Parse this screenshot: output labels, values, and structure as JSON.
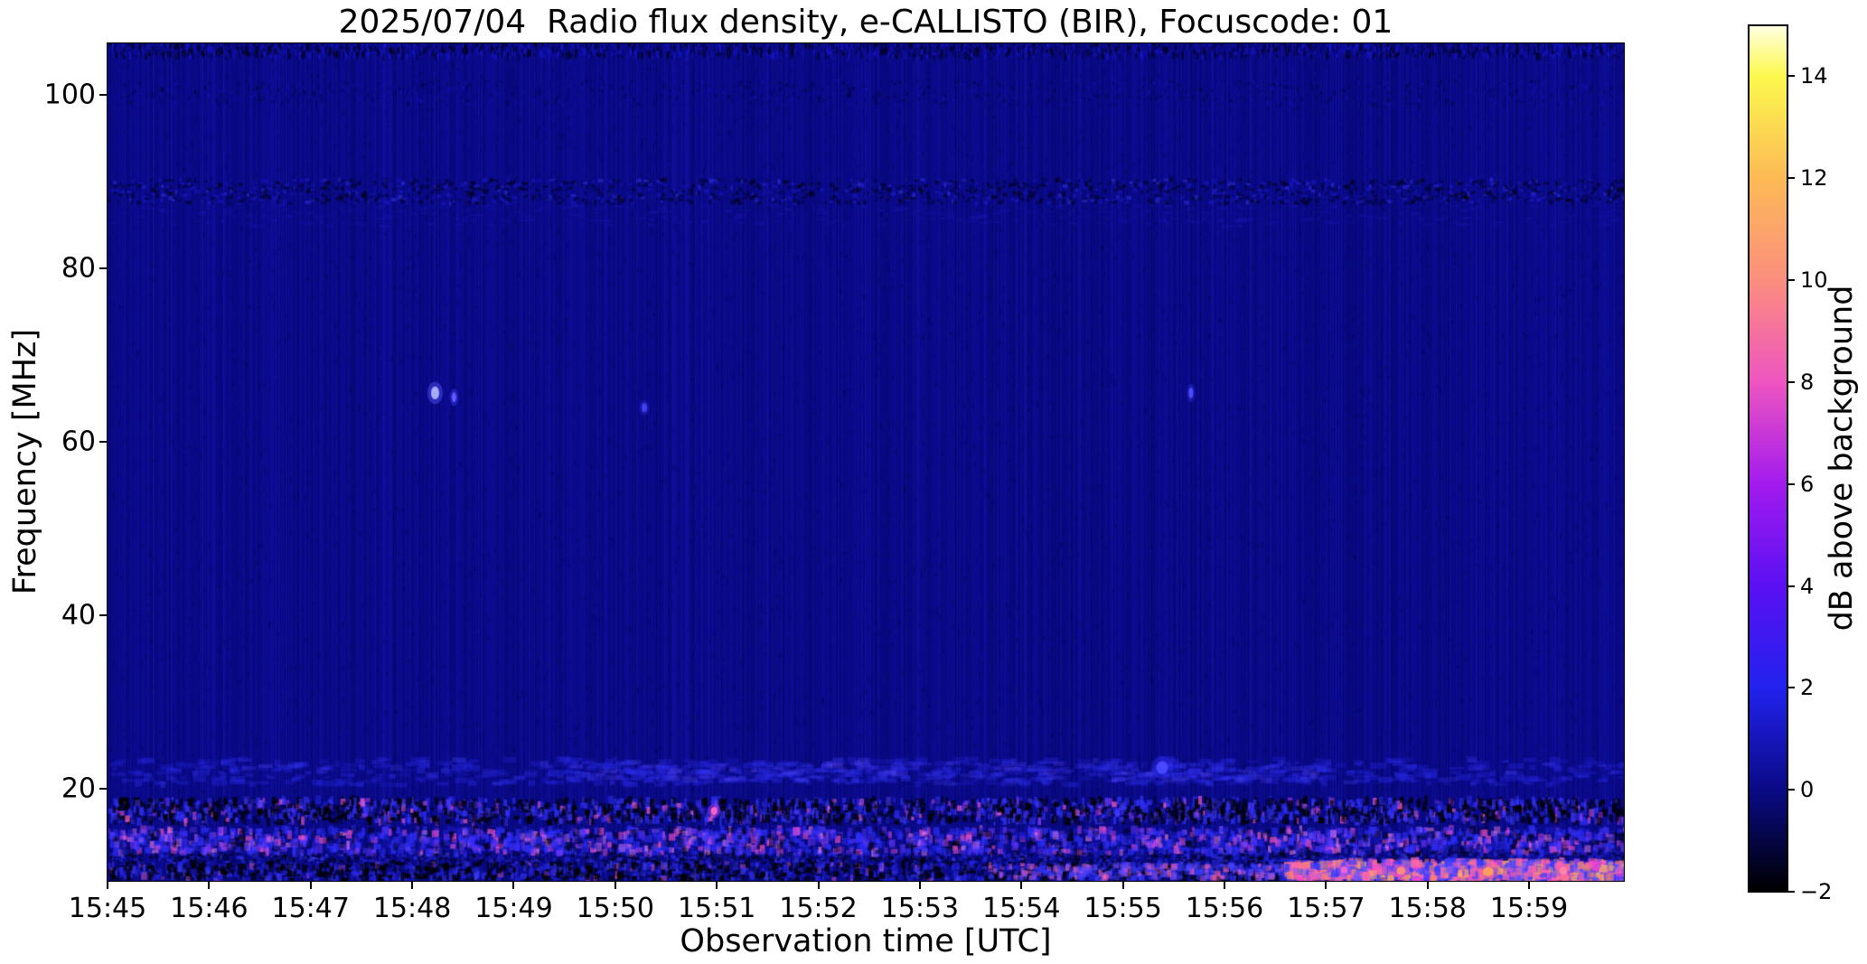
{
  "figure": {
    "background_color": "#ffffff"
  },
  "chart_data": {
    "type": "heatmap",
    "subtype": "radio-spectrogram",
    "title": "2025/07/04  Radio flux density, e-CALLISTO (BIR), Focuscode: 01",
    "xlabel": "Observation time [UTC]",
    "ylabel": "Frequency [MHz]",
    "x_ticks": [
      "15:45",
      "15:46",
      "15:47",
      "15:48",
      "15:49",
      "15:50",
      "15:51",
      "15:52",
      "15:53",
      "15:54",
      "15:55",
      "15:56",
      "15:57",
      "15:58",
      "15:59"
    ],
    "x_range": [
      "15:45",
      "16:00"
    ],
    "y_ticks": [
      100,
      80,
      60,
      40,
      20
    ],
    "y_range_mhz": [
      9.4,
      105.9
    ],
    "grid": false,
    "legend": false,
    "background_level_color": "#0a0a8c",
    "colorbar": {
      "label": "dB above background",
      "ticks": [
        14,
        12,
        10,
        8,
        6,
        4,
        2,
        0,
        -2
      ],
      "tick_labels": [
        "14",
        "12",
        "10",
        "8",
        "6",
        "4",
        "2",
        "0",
        "−2"
      ],
      "range": [
        -2,
        15
      ],
      "colormap_stops": [
        {
          "value": -2,
          "color": "#000000"
        },
        {
          "value": 0,
          "color": "#0a0a87"
        },
        {
          "value": 2,
          "color": "#2222ee"
        },
        {
          "value": 4,
          "color": "#5a10f2"
        },
        {
          "value": 6,
          "color": "#a21bee"
        },
        {
          "value": 8,
          "color": "#ee55c0"
        },
        {
          "value": 10,
          "color": "#fb8e7e"
        },
        {
          "value": 12,
          "color": "#fdba55"
        },
        {
          "value": 14,
          "color": "#fcf84d"
        },
        {
          "value": 15,
          "color": "#ffffe2"
        }
      ]
    },
    "noise": {
      "column_stripe_density": 1.0,
      "speckle_count": 15000,
      "speckle_dark": "#000020",
      "speckle_light": "#1414b8"
    },
    "bands": [
      {
        "name": "top-edge-noise",
        "f": [
          104.3,
          106.3
        ],
        "x": [
          0,
          1
        ],
        "density": 2200,
        "dash": [
          1,
          3,
          3,
          9
        ],
        "palette": [
          [
            "#000000",
            0.55,
            0.55
          ],
          [
            "#1a1ae8",
            0.5,
            0.45
          ]
        ]
      },
      {
        "name": "band-100mhz",
        "f": [
          98.8,
          101.6
        ],
        "x": [
          0,
          1
        ],
        "density": 800,
        "dash": [
          1,
          4,
          2,
          5
        ],
        "palette": [
          [
            "#000000",
            0.3,
            0.65
          ],
          [
            "#1818cf",
            0.35,
            0.35
          ]
        ]
      },
      {
        "name": "band-88mhz-fm-notch",
        "f": [
          87.4,
          90.2
        ],
        "x": [
          0,
          1
        ],
        "density": 1500,
        "dash": [
          2,
          6,
          2,
          5
        ],
        "palette": [
          [
            "#000000",
            0.5,
            0.6
          ],
          [
            "#1d1dd8",
            0.5,
            0.3
          ],
          [
            "#3c3cfa",
            0.5,
            0.1
          ]
        ]
      },
      {
        "name": "haze-86mhz",
        "f": [
          84.8,
          87.2
        ],
        "x": [
          0,
          1
        ],
        "density": 350,
        "dash": [
          4,
          12,
          2,
          4
        ],
        "palette": [
          [
            "#2525d8",
            0.18,
            1
          ]
        ]
      },
      {
        "name": "band-22mhz",
        "f": [
          20.4,
          23.4
        ],
        "x": [
          0,
          1
        ],
        "density": 700,
        "dash": [
          5,
          18,
          3,
          7
        ],
        "palette": [
          [
            "#2828e6",
            0.4,
            0.6
          ],
          [
            "#3333ff",
            0.35,
            0.3
          ],
          [
            "#5050ff",
            0.3,
            0.1
          ]
        ]
      },
      {
        "name": "band-22mhz-extra",
        "f": [
          20.8,
          23.0
        ],
        "x": [
          0.3,
          0.8
        ],
        "density": 260,
        "dash": [
          6,
          20,
          3,
          6
        ],
        "palette": [
          [
            "#3434f2",
            0.35,
            0.8
          ],
          [
            "#6a4df8",
            0.25,
            0.2
          ]
        ]
      },
      {
        "name": "band-17-18mhz",
        "f": [
          16.1,
          18.7
        ],
        "x": [
          0,
          1
        ],
        "density": 2400,
        "dash": [
          2,
          6,
          4,
          10
        ],
        "palette": [
          [
            "#000000",
            0.8,
            0.5
          ],
          [
            "#3232ff",
            0.75,
            0.3
          ],
          [
            "#5544ff",
            0.5,
            0.12
          ],
          [
            "#ff5fc9",
            0.75,
            0.04
          ],
          [
            "#cc44ff",
            0.5,
            0.04
          ]
        ]
      },
      {
        "name": "band-13-15mhz",
        "f": [
          12.5,
          15.3
        ],
        "x": [
          0,
          1
        ],
        "density": 2400,
        "dash": [
          3,
          8,
          4,
          10
        ],
        "palette": [
          [
            "#3030ff",
            0.7,
            0.32
          ],
          [
            "#2020dd",
            0.6,
            0.2
          ],
          [
            "#000000",
            0.55,
            0.18
          ],
          [
            "#7a3cff",
            0.55,
            0.14
          ],
          [
            "#ff55cc",
            0.7,
            0.1
          ],
          [
            "#ff88dd",
            0.6,
            0.06
          ]
        ]
      },
      {
        "name": "band-12mhz",
        "f": [
          11.3,
          12.5
        ],
        "x": [
          0,
          1
        ],
        "density": 1100,
        "dash": [
          2,
          6,
          2,
          5
        ],
        "palette": [
          [
            "#000000",
            0.6,
            0.5
          ],
          [
            "#2a2aee",
            0.6,
            0.4
          ],
          [
            "#5050ff",
            0.5,
            0.1
          ]
        ]
      },
      {
        "name": "band-bottom-left",
        "f": [
          9.4,
          11.3
        ],
        "x": [
          0,
          0.8
        ],
        "density": 1500,
        "dash": [
          2,
          7,
          3,
          9
        ],
        "palette": [
          [
            "#000000",
            0.85,
            0.5
          ],
          [
            "#2525e8",
            0.7,
            0.35
          ],
          [
            "#4444ff",
            0.6,
            0.1
          ],
          [
            "#ff66bb",
            0.5,
            0.05
          ]
        ]
      },
      {
        "name": "band-bottom-mid",
        "f": [
          9.6,
          11.2
        ],
        "x": [
          0.58,
          0.79
        ],
        "density": 350,
        "dash": [
          3,
          8,
          3,
          8
        ],
        "palette": [
          [
            "#3a3aff",
            0.6,
            0.6
          ],
          [
            "#ff66bb",
            0.6,
            0.25
          ],
          [
            "#7755ff",
            0.5,
            0.15
          ]
        ]
      },
      {
        "name": "band-bottom-right-bright",
        "f": [
          9.5,
          11.5
        ],
        "x": [
          0.775,
          1
        ],
        "density": 1200,
        "dash": [
          4,
          10,
          4,
          11
        ],
        "palette": [
          [
            "#3a3aff",
            0.8,
            0.3
          ],
          [
            "#6655ff",
            0.7,
            0.2
          ],
          [
            "#ff66aa",
            0.8,
            0.2
          ],
          [
            "#ff8866",
            0.8,
            0.12
          ],
          [
            "#ffaa66",
            0.8,
            0.08
          ],
          [
            "#ff44cc",
            0.8,
            0.1
          ]
        ]
      }
    ],
    "spots": [
      {
        "time": "15:48.2",
        "x": 0.216,
        "f": 65.6,
        "w": 9,
        "h": 13,
        "color": "#b0b0ff",
        "halo": "#5555ff"
      },
      {
        "time": "15:48.4",
        "x": 0.2285,
        "f": 65.1,
        "w": 5,
        "h": 10,
        "color": "#6060ff",
        "halo": "#3a3af5"
      },
      {
        "time": "15:50.3",
        "x": 0.354,
        "f": 63.9,
        "w": 6,
        "h": 9,
        "color": "#4343f6",
        "halo": "#2626c8"
      },
      {
        "time": "15:55.7",
        "x": 0.7145,
        "f": 65.6,
        "w": 5,
        "h": 11,
        "color": "#4d4dff",
        "halo": "#2a2ad0"
      },
      {
        "time": "15:55.4",
        "x": 0.6955,
        "f": 22.4,
        "w": 13,
        "h": 13,
        "color": "#4a4aff",
        "halo": "#2d2df0"
      },
      {
        "time": "15:51.0",
        "x": 0.4,
        "f": 17.4,
        "w": 7,
        "h": 8,
        "color": "#ff66cc",
        "halo": "#cc44ff"
      },
      {
        "time": "15:57.2",
        "x": 0.8155,
        "f": 10.6,
        "w": 8,
        "h": 7,
        "color": "#ee66cc",
        "halo": "#aa44ff"
      },
      {
        "time": "15:57.8",
        "x": 0.853,
        "f": 10.5,
        "w": 10,
        "h": 8,
        "color": "#ff8f7a",
        "halo": "#ff55aa"
      },
      {
        "time": "15:58.7",
        "x": 0.9105,
        "f": 10.4,
        "w": 12,
        "h": 9,
        "color": "#ffa05f",
        "halo": "#ff6688"
      },
      {
        "time": "15:59.4",
        "x": 0.96,
        "f": 10.5,
        "w": 9,
        "h": 8,
        "color": "#ff88a0",
        "halo": "#ff55bb"
      }
    ]
  }
}
